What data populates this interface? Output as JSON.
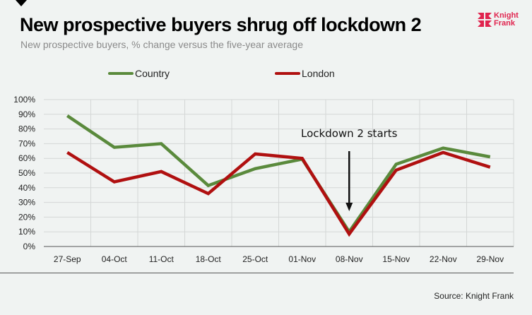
{
  "header": {
    "title": "New prospective buyers shrug off lockdown 2",
    "subtitle": "New prospective buyers, % change versus the five-year average",
    "logo_line1": "Knight",
    "logo_line2": "Frank",
    "logo_color": "#e0234e"
  },
  "footer": {
    "source": "Source: Knight Frank"
  },
  "chart_data": {
    "type": "line",
    "title": "New prospective buyers shrug off lockdown 2",
    "subtitle": "New prospective buyers, % change versus the five-year average",
    "xlabel": "",
    "ylabel": "",
    "categories": [
      "27-Sep",
      "04-Oct",
      "11-Oct",
      "18-Oct",
      "25-Oct",
      "01-Nov",
      "08-Nov",
      "15-Nov",
      "22-Nov",
      "29-Nov"
    ],
    "y_ticks": [
      "0%",
      "10%",
      "20%",
      "30%",
      "40%",
      "50%",
      "60%",
      "70%",
      "80%",
      "90%",
      "100%"
    ],
    "ylim": [
      0,
      100
    ],
    "grid": true,
    "legend_position": "top",
    "series": [
      {
        "name": "Country",
        "color": "#5a8a3c",
        "values": [
          89,
          67.5,
          70,
          41.5,
          53,
          59.5,
          10,
          56,
          67,
          61
        ]
      },
      {
        "name": "London",
        "color": "#b01010",
        "values": [
          64,
          44,
          51,
          36,
          63,
          60,
          8.5,
          52,
          64,
          54
        ]
      }
    ],
    "annotations": [
      {
        "text": "Lockdown 2 starts",
        "category": "08-Nov",
        "type": "arrow-down"
      }
    ]
  }
}
